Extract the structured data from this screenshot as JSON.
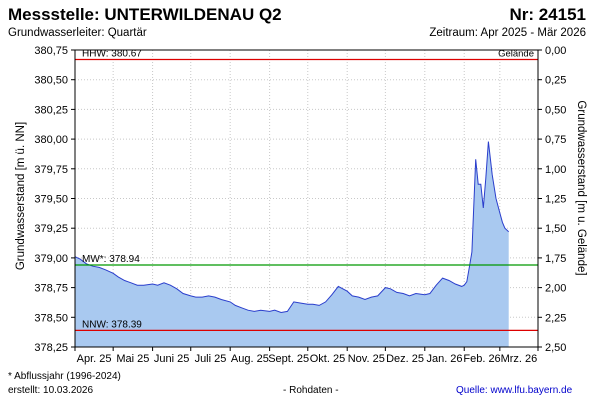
{
  "header": {
    "station": "Messstelle: UNTERWILDENAU Q2",
    "number": "Nr: 24151",
    "aquifer": "Grundwasserleiter: Quartär",
    "period": "Zeitraum: Apr 2025 - Mär 2026"
  },
  "footer": {
    "note": "* Abflussjahr (1996-2024)",
    "created": "erstellt:  10.03.2026",
    "raw": "- Rohdaten -",
    "source_label": "Quelle: ",
    "source_link": "www.lfu.bayern.de"
  },
  "chart_data": {
    "type": "area",
    "ylabel_left": "Grundwasserstand [m ü. NN]",
    "ylabel_right": "Grundwasserstand [m u. Gelände]",
    "ylim_left": [
      378.25,
      380.75
    ],
    "ylim_right": [
      2.5,
      0.0
    ],
    "yticks_left": [
      "380,75",
      "380,50",
      "380,25",
      "380,00",
      "379,75",
      "379,50",
      "379,25",
      "379,00",
      "378,75",
      "378,50",
      "378,25"
    ],
    "yticks_right": [
      "0,00",
      "0,25",
      "0,50",
      "0,75",
      "1,00",
      "1,25",
      "1,50",
      "1,75",
      "2,00",
      "2,25",
      "2,50"
    ],
    "xticks": [
      "Apr. 25",
      "Mai 25",
      "Juni 25",
      "Juli 25",
      "Aug. 25",
      "Sept. 25",
      "Okt. 25",
      "Nov. 25",
      "Dez. 25",
      "Jan. 26",
      "Feb. 26",
      "Mrz. 26"
    ],
    "colors": {
      "area": "#a9c9f0",
      "line": "#2a3ecc",
      "hhw": "#dd0000",
      "mw": "#009900",
      "nnw": "#dd0000",
      "grid": "#c8c8c8"
    },
    "reference_lines": [
      {
        "name": "HHW",
        "label": "HHW: 380.67",
        "value": 380.67
      },
      {
        "name": "Gelände",
        "label": "Gelände",
        "value": 380.75
      },
      {
        "name": "MW",
        "label": "MW*: 378.94",
        "value": 378.94
      },
      {
        "name": "NNW",
        "label": "NNW: 378.39",
        "value": 378.39
      }
    ],
    "series": [
      {
        "x": [
          "2025-04-01",
          "2025-04-05",
          "2025-04-10",
          "2025-04-15",
          "2025-04-20",
          "2025-04-25",
          "2025-05-01",
          "2025-05-05",
          "2025-05-10",
          "2025-05-15",
          "2025-05-20",
          "2025-05-25",
          "2025-06-01",
          "2025-06-05",
          "2025-06-10",
          "2025-06-15",
          "2025-06-20",
          "2025-06-25",
          "2025-07-01",
          "2025-07-05",
          "2025-07-10",
          "2025-07-15",
          "2025-07-20",
          "2025-07-25",
          "2025-08-01",
          "2025-08-05",
          "2025-08-10",
          "2025-08-15",
          "2025-08-20",
          "2025-08-25",
          "2025-09-01",
          "2025-09-05",
          "2025-09-10",
          "2025-09-15",
          "2025-09-20",
          "2025-09-25",
          "2025-10-01",
          "2025-10-05",
          "2025-10-10",
          "2025-10-15",
          "2025-10-20",
          "2025-10-25",
          "2025-11-01",
          "2025-11-05",
          "2025-11-10",
          "2025-11-15",
          "2025-11-20",
          "2025-11-25",
          "2025-12-01",
          "2025-12-05",
          "2025-12-10",
          "2025-12-15",
          "2025-12-20",
          "2025-12-25",
          "2026-01-01",
          "2026-01-05",
          "2026-01-10",
          "2026-01-15",
          "2026-01-20",
          "2026-01-25",
          "2026-01-30",
          "2026-02-01",
          "2026-02-03",
          "2026-02-05",
          "2026-02-07",
          "2026-02-08",
          "2026-02-10",
          "2026-02-12",
          "2026-02-14",
          "2026-02-16",
          "2026-02-18",
          "2026-02-20",
          "2026-02-23",
          "2026-02-26",
          "2026-03-01",
          "2026-03-03",
          "2026-03-05",
          "2026-03-08"
        ],
        "values": [
          379.01,
          378.99,
          378.95,
          378.93,
          378.92,
          378.9,
          378.87,
          378.84,
          378.81,
          378.79,
          378.77,
          378.77,
          378.78,
          378.77,
          378.79,
          378.77,
          378.74,
          378.7,
          378.68,
          378.67,
          378.67,
          378.68,
          378.67,
          378.65,
          378.63,
          378.6,
          378.58,
          378.56,
          378.55,
          378.56,
          378.55,
          378.56,
          378.54,
          378.55,
          378.63,
          378.62,
          378.61,
          378.61,
          378.6,
          378.63,
          378.69,
          378.76,
          378.72,
          378.68,
          378.67,
          378.65,
          378.67,
          378.68,
          378.75,
          378.74,
          378.71,
          378.7,
          378.68,
          378.7,
          378.69,
          378.7,
          378.77,
          378.83,
          378.81,
          378.78,
          378.76,
          378.77,
          378.8,
          378.92,
          379.05,
          379.3,
          379.83,
          379.62,
          379.62,
          379.42,
          379.67,
          379.98,
          379.7,
          379.5,
          379.38,
          379.3,
          379.25,
          379.22
        ]
      }
    ]
  }
}
